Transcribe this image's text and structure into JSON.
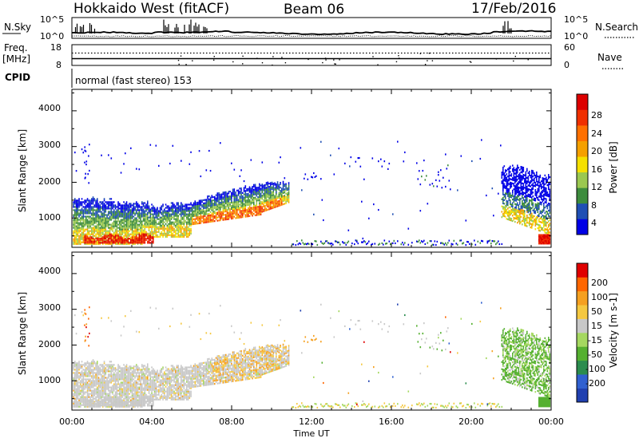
{
  "header": {
    "title": "Hokkaido West (fitACF)",
    "beam": "Beam 06",
    "date": "17/Feb/2016"
  },
  "chart_data": {
    "type": "heatmap",
    "x_ticks": [
      "00:00",
      "04:00",
      "08:00",
      "12:00",
      "16:00",
      "20:00",
      "00:00"
    ],
    "x_label": "Time UT",
    "x_range_hours": [
      0,
      24
    ],
    "status_panels": {
      "nsky": {
        "label": "N.Sky",
        "left_ticks": [
          "10^5",
          "10^0"
        ],
        "right_ticks": [
          "10^5",
          "10^0"
        ],
        "right_label": "N.Search"
      },
      "freq": {
        "label_line1": "Freq.",
        "label_line2": "[MHz]",
        "left_ticks": [
          "18",
          "8"
        ],
        "right_ticks": [
          "60",
          "0"
        ],
        "right_label": "Nave"
      },
      "cpid": {
        "label": "CPID",
        "text": "normal (fast stereo) 153"
      }
    },
    "panels": [
      {
        "id": "power",
        "ylabel": "Slant Range [km]",
        "y_ticks": [
          "4000",
          "3000",
          "2000",
          "1000"
        ],
        "ylim": [
          180,
          4600
        ],
        "colorbar_label": "Power [dB]",
        "colorbar_ticks": [
          "28",
          "24",
          "20",
          "16",
          "12",
          "8",
          "4"
        ],
        "colors": [
          "#0000e6",
          "#1f4fb4",
          "#3d8c3d",
          "#9bc850",
          "#f5e000",
          "#f5a000",
          "#ff7000",
          "#f03000",
          "#dd0000"
        ]
      },
      {
        "id": "velocity",
        "ylabel": "Slant Range [km]",
        "y_ticks": [
          "4000",
          "3000",
          "2000",
          "1000"
        ],
        "ylim": [
          180,
          4600
        ],
        "colorbar_label": "Velocity [m s-1]",
        "colorbar_ticks": [
          "200",
          "100",
          "50",
          "15",
          "-15",
          "-50",
          "-100",
          "-200"
        ],
        "colors": [
          "#2040b0",
          "#3060d0",
          "#2b8c4e",
          "#55b030",
          "#a5d860",
          "#c8c8c8",
          "#f5c840",
          "#f5a020",
          "#ff6600",
          "#e00000"
        ]
      }
    ]
  }
}
